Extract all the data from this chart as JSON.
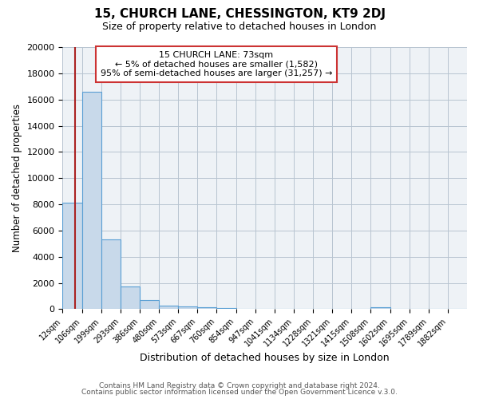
{
  "title": "15, CHURCH LANE, CHESSINGTON, KT9 2DJ",
  "subtitle": "Size of property relative to detached houses in London",
  "xlabel": "Distribution of detached houses by size in London",
  "ylabel": "Number of detached properties",
  "bin_labels": [
    "12sqm",
    "106sqm",
    "199sqm",
    "293sqm",
    "386sqm",
    "480sqm",
    "573sqm",
    "667sqm",
    "760sqm",
    "854sqm",
    "947sqm",
    "1041sqm",
    "1134sqm",
    "1228sqm",
    "1321sqm",
    "1415sqm",
    "1508sqm",
    "1602sqm",
    "1695sqm",
    "1789sqm",
    "1882sqm"
  ],
  "counts": [
    8100,
    16600,
    5300,
    1750,
    700,
    300,
    200,
    150,
    100,
    0,
    0,
    0,
    0,
    0,
    0,
    0,
    150,
    0,
    0,
    0,
    0
  ],
  "bar_color": "#c8d9ea",
  "bar_edge_color": "#5a9fd4",
  "vline_bin": 0.65,
  "vline_color": "#aa2222",
  "annotation_title": "15 CHURCH LANE: 73sqm",
  "annotation_line1": "← 5% of detached houses are smaller (1,582)",
  "annotation_line2": "95% of semi-detached houses are larger (31,257) →",
  "annotation_box_color": "#ffffff",
  "annotation_box_edge": "#cc3333",
  "footer1": "Contains HM Land Registry data © Crown copyright and database right 2024.",
  "footer2": "Contains public sector information licensed under the Open Government Licence v.3.0.",
  "ylim": [
    0,
    20000
  ],
  "yticks": [
    0,
    2000,
    4000,
    6000,
    8000,
    10000,
    12000,
    14000,
    16000,
    18000,
    20000
  ],
  "bg_color": "#eef2f6",
  "grid_color": "#b8c4d0"
}
